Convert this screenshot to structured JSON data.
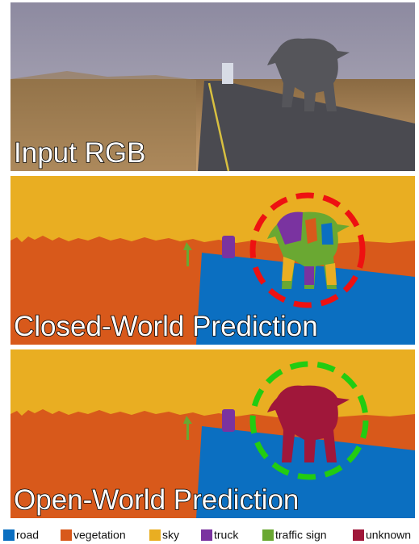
{
  "panels": [
    {
      "label": "Input RGB"
    },
    {
      "label": "Closed-World Prediction"
    },
    {
      "label": "Open-World Prediction"
    }
  ],
  "legend": [
    {
      "label": "road",
      "color": "#0b6fc1"
    },
    {
      "label": "vegetation",
      "color": "#d8591b"
    },
    {
      "label": "sky",
      "color": "#e9ae22"
    },
    {
      "label": "truck",
      "color": "#7a33a0"
    },
    {
      "label": "traffic sign",
      "color": "#6aa832"
    },
    {
      "label": "unknown",
      "color": "#a0173a"
    }
  ]
}
